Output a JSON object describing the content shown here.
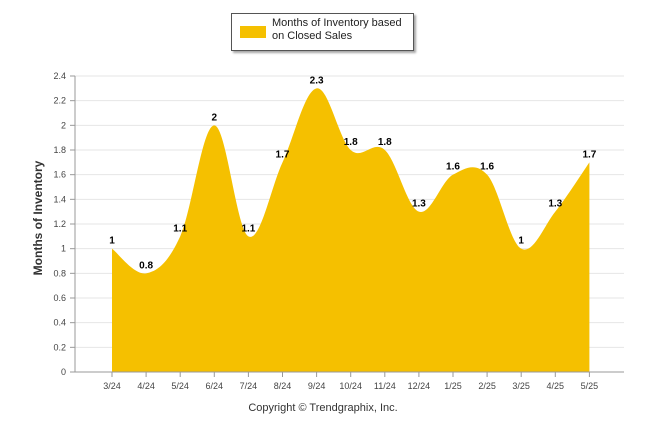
{
  "chart_data": {
    "type": "area",
    "title": "",
    "ylabel": "Months of Inventory",
    "xlabel": "",
    "categories": [
      "3/24",
      "4/24",
      "5/24",
      "6/24",
      "7/24",
      "8/24",
      "9/24",
      "10/24",
      "11/24",
      "12/24",
      "1/25",
      "2/25",
      "3/25",
      "4/25",
      "5/25"
    ],
    "series": [
      {
        "name": "Months of Inventory based on Closed Sales",
        "values": [
          1,
          0.8,
          1.1,
          2,
          1.1,
          1.7,
          2.3,
          1.8,
          1.8,
          1.3,
          1.6,
          1.6,
          1,
          1.3,
          1.7
        ],
        "color": "#f5c000"
      }
    ],
    "data_labels": [
      "1",
      "0.8",
      "1.1",
      "2",
      "1.1",
      "1.7",
      "2.3",
      "1.8",
      "1.8",
      "1.3",
      "1.6",
      "1.6",
      "1",
      "1.3",
      "1.7"
    ],
    "ylim": [
      0,
      2.4
    ],
    "yticks": [
      "0",
      "0.2",
      "0.4",
      "0.6",
      "0.8",
      "1",
      "1.2",
      "1.4",
      "1.6",
      "1.8",
      "2",
      "2.2",
      "2.4"
    ],
    "grid": true,
    "legend_position": "top-center"
  },
  "legend": {
    "label": "Months of Inventory based on Closed Sales",
    "color": "#f5c000"
  },
  "footer": {
    "copyright": "Copyright © Trendgraphix, Inc."
  }
}
